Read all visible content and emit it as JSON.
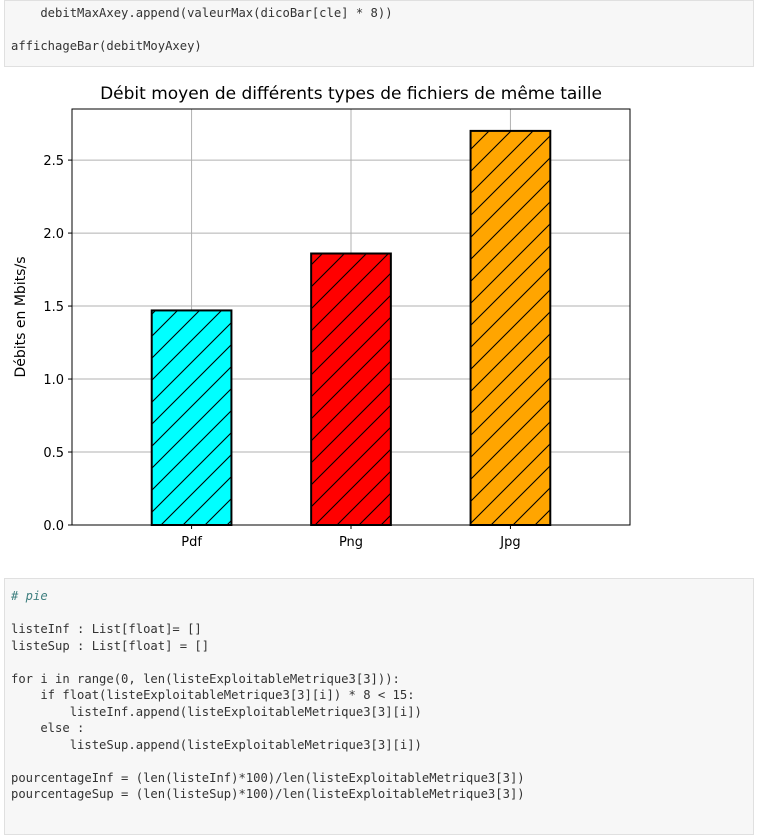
{
  "cell_top": {
    "line1": "    debitMaxAxey.append(valeurMax(dicoBar[cle] * 8))",
    "line2": "affichageBar(debitMoyAxey)"
  },
  "chart_data": {
    "type": "bar",
    "title": "Débit moyen de différents types de fichiers de même taille",
    "xlabel": "",
    "ylabel": "Débits en Mbits/s",
    "categories": [
      "Pdf",
      "Png",
      "Jpg"
    ],
    "values": [
      1.47,
      1.86,
      2.7
    ],
    "colors": [
      "#00ffff",
      "#ff0000",
      "#ffa500"
    ],
    "ylim": [
      0,
      2.85
    ],
    "yticks": [
      "0.0",
      "0.5",
      "1.0",
      "1.5",
      "2.0",
      "2.5"
    ],
    "grid": true,
    "hatch": "forward-diagonal"
  },
  "cell_bottom": {
    "comment": "# pie",
    "l_inf_decl": "listeInf : List[float]= []",
    "l_sup_decl": "listeSup : List[float] = []",
    "for_line": "for i in range(0, len(listeExploitableMetrique3[3])):",
    "if_line": "    if float(listeExploitableMetrique3[3][i]) * 8 < 15:",
    "append_inf": "        listeInf.append(listeExploitableMetrique3[3][i])",
    "else_line": "    else :",
    "append_sup": "        listeSup.append(listeExploitableMetrique3[3][i])",
    "pct_inf": "pourcentageInf = (len(listeInf)*100)/len(listeExploitableMetrique3[3])",
    "pct_sup": "pourcentageSup = (len(listeSup)*100)/len(listeExploitableMetrique3[3])"
  }
}
